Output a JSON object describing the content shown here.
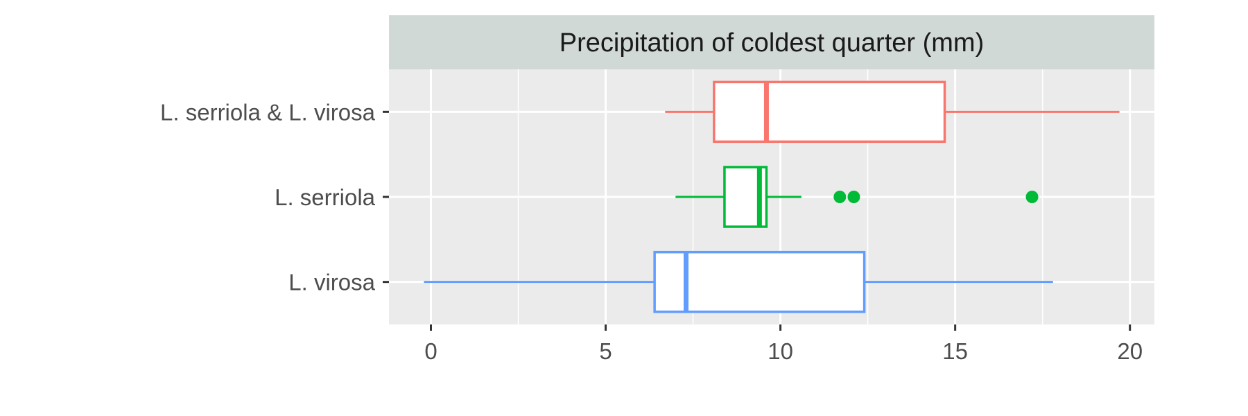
{
  "chart_data": {
    "type": "boxplot",
    "title": "",
    "facet_label": "Precipitation of coldest quarter (mm)",
    "xlabel": "",
    "ylabel": "",
    "xlim": [
      -1.2,
      20.7
    ],
    "x_ticks": [
      0,
      5,
      10,
      15,
      20
    ],
    "x_tick_labels": [
      "0",
      "5",
      "10",
      "15",
      "20"
    ],
    "x_minor_grid": [
      2.5,
      7.5,
      12.5,
      17.5
    ],
    "grid": true,
    "legend": "none",
    "categories": [
      "L. serriola & L. virosa",
      "L. serriola",
      "L. virosa"
    ],
    "series": [
      {
        "category": "L. serriola & L. virosa",
        "color": "#F8766D",
        "whisker_low": 6.7,
        "q1": 8.1,
        "median": 9.6,
        "q3": 14.7,
        "whisker_high": 19.7,
        "outliers": []
      },
      {
        "category": "L. serriola",
        "color": "#00BA38",
        "whisker_low": 7.0,
        "q1": 8.4,
        "median": 9.4,
        "q3": 9.6,
        "whisker_high": 10.6,
        "outliers": [
          11.7,
          12.1,
          17.2
        ]
      },
      {
        "category": "L. virosa",
        "color": "#619CFF",
        "whisker_low": -0.2,
        "q1": 6.4,
        "median": 7.3,
        "q3": 12.4,
        "whisker_high": 17.8,
        "outliers": []
      }
    ],
    "colors": {
      "panel_background": "#EBEBEB",
      "strip_background": "#D1D9D7",
      "grid": "#FFFFFF",
      "axis_text": "#4D4D4D",
      "tick": "#333333",
      "box_fill": "#FFFFFF"
    }
  }
}
